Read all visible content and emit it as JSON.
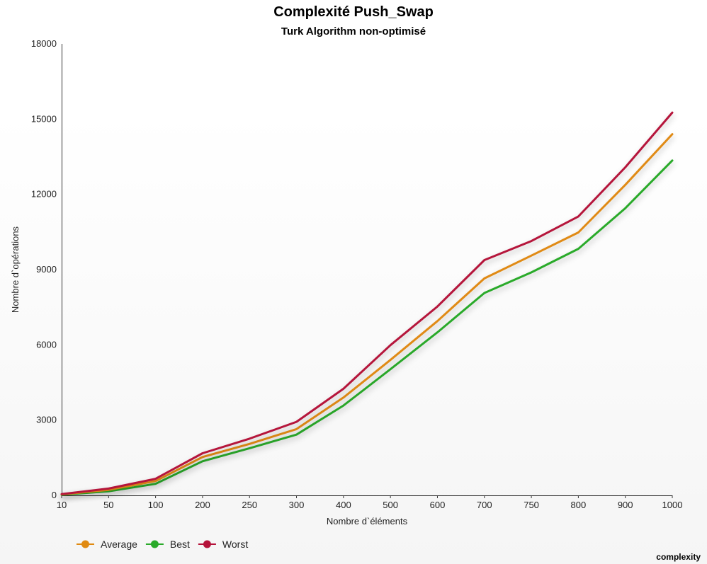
{
  "chart_data": {
    "type": "line",
    "title": "Complexité Push_Swap",
    "subtitle": "Turk Algorithm non-optimisé",
    "xlabel": "Nombre d`éléments",
    "ylabel": "Nombre d`opérations",
    "categories": [
      "10",
      "50",
      "100",
      "200",
      "250",
      "300",
      "400",
      "500",
      "600",
      "700",
      "750",
      "800",
      "900",
      "1000"
    ],
    "ylim": [
      0,
      18000
    ],
    "yticks": [
      0,
      3000,
      6000,
      9000,
      12000,
      15000,
      18000
    ],
    "grid": false,
    "legend_position": "bottom-left",
    "series": [
      {
        "name": "Average",
        "color": "#e08a12",
        "values": [
          40,
          220,
          570,
          1530,
          2050,
          2640,
          3900,
          5400,
          6950,
          8650,
          9560,
          10480,
          12380,
          14400
        ]
      },
      {
        "name": "Best",
        "color": "#2aaa2a",
        "values": [
          25,
          160,
          460,
          1360,
          1880,
          2420,
          3580,
          5030,
          6500,
          8070,
          8890,
          9830,
          11450,
          13350
        ]
      },
      {
        "name": "Worst",
        "color": "#b5123a",
        "values": [
          50,
          270,
          660,
          1680,
          2260,
          2930,
          4250,
          5990,
          7530,
          9380,
          10140,
          11120,
          13080,
          15260
        ]
      }
    ]
  },
  "footer_label": "complexity"
}
